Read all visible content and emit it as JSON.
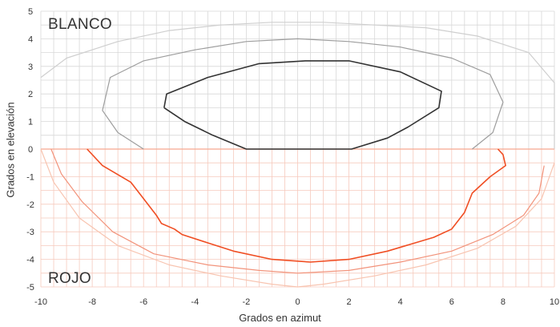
{
  "chart_data": {
    "type": "area",
    "xlabel": "Grados en azimut",
    "ylabel": "Grados en elevación",
    "xlim": [
      -10,
      10
    ],
    "ylim": [
      -5,
      5
    ],
    "grid": true,
    "x_ticks": [
      "-10",
      "-8",
      "-6",
      "-4",
      "-2",
      "0",
      "2",
      "4",
      "6",
      "8",
      "10"
    ],
    "y_ticks": [
      "5",
      "4",
      "3",
      "2",
      "1",
      "0",
      "-1",
      "-2",
      "-3",
      "-4",
      "-5"
    ],
    "regions": [
      {
        "label": "BLANCO",
        "color": "#9a9a9a",
        "contours": [
          {
            "level": "outer",
            "color": "#cfcfcf",
            "points": [
              [
                -10,
                2.6
              ],
              [
                -9,
                3.3
              ],
              [
                -7,
                3.9
              ],
              [
                -5,
                4.3
              ],
              [
                -3,
                4.5
              ],
              [
                -1,
                4.6
              ],
              [
                0,
                4.6
              ],
              [
                1,
                4.6
              ],
              [
                3,
                4.5
              ],
              [
                5,
                4.4
              ],
              [
                7,
                4.1
              ],
              [
                9,
                3.5
              ],
              [
                10,
                2.4
              ],
              [
                10,
                0
              ]
            ]
          },
          {
            "level": "middle",
            "color": "#9d9d9d",
            "points": [
              [
                -6.0,
                0
              ],
              [
                -7.0,
                0.6
              ],
              [
                -7.6,
                1.4
              ],
              [
                -7.3,
                2.6
              ],
              [
                -6,
                3.2
              ],
              [
                -4,
                3.6
              ],
              [
                -2,
                3.9
              ],
              [
                0,
                4.0
              ],
              [
                2,
                3.9
              ],
              [
                4,
                3.7
              ],
              [
                6,
                3.3
              ],
              [
                7.5,
                2.7
              ],
              [
                8.0,
                1.7
              ],
              [
                7.6,
                0.6
              ],
              [
                6.8,
                0
              ]
            ]
          },
          {
            "level": "inner",
            "color": "#333333",
            "points": [
              [
                -5.2,
                1.5
              ],
              [
                -5.1,
                2.0
              ],
              [
                -3.5,
                2.6
              ],
              [
                -1.5,
                3.1
              ],
              [
                0.3,
                3.2
              ],
              [
                2,
                3.2
              ],
              [
                4,
                2.8
              ],
              [
                5.6,
                2.1
              ],
              [
                5.5,
                1.5
              ],
              [
                4.3,
                0.8
              ],
              [
                3.5,
                0.4
              ],
              [
                2.1,
                0
              ],
              [
                -2.0,
                0
              ],
              [
                -3.3,
                0.5
              ],
              [
                -4.4,
                1.0
              ],
              [
                -5.2,
                1.5
              ]
            ]
          }
        ]
      },
      {
        "label": "ROJO",
        "color": "#f04e23",
        "contours": [
          {
            "level": "outer",
            "color": "#f8c4b0",
            "points": [
              [
                -10,
                0
              ],
              [
                -9.5,
                -1.2
              ],
              [
                -8.5,
                -2.5
              ],
              [
                -7,
                -3.5
              ],
              [
                -5,
                -4.2
              ],
              [
                -3,
                -4.6
              ],
              [
                -1,
                -4.9
              ],
              [
                0,
                -5.0
              ],
              [
                1,
                -4.9
              ],
              [
                3,
                -4.6
              ],
              [
                5,
                -4.2
              ],
              [
                7,
                -3.6
              ],
              [
                8.5,
                -2.8
              ],
              [
                9.5,
                -1.8
              ],
              [
                10,
                -0.5
              ]
            ]
          },
          {
            "level": "middle",
            "color": "#f2937b",
            "points": [
              [
                -9.6,
                0
              ],
              [
                -9.2,
                -0.9
              ],
              [
                -8.4,
                -1.9
              ],
              [
                -7.2,
                -3.0
              ],
              [
                -5.6,
                -3.8
              ],
              [
                -3.5,
                -4.2
              ],
              [
                -1.5,
                -4.4
              ],
              [
                0,
                -4.5
              ],
              [
                2,
                -4.4
              ],
              [
                4,
                -4.1
              ],
              [
                6,
                -3.7
              ],
              [
                7.6,
                -3.1
              ],
              [
                8.8,
                -2.4
              ],
              [
                9.4,
                -1.6
              ],
              [
                9.6,
                -0.6
              ]
            ]
          },
          {
            "level": "inner",
            "color": "#f04e23",
            "points": [
              [
                -8.2,
                0
              ],
              [
                -7.6,
                -0.6
              ],
              [
                -6.5,
                -1.2
              ],
              [
                -6,
                -1.8
              ],
              [
                -5.5,
                -2.4
              ],
              [
                -5.3,
                -2.7
              ],
              [
                -4.8,
                -2.9
              ],
              [
                -4.5,
                -3.1
              ],
              [
                -3.5,
                -3.4
              ],
              [
                -2.5,
                -3.7
              ],
              [
                -1,
                -4.0
              ],
              [
                0.5,
                -4.1
              ],
              [
                2,
                -4.0
              ],
              [
                3.5,
                -3.7
              ],
              [
                5.3,
                -3.2
              ],
              [
                6.0,
                -2.9
              ],
              [
                6.5,
                -2.3
              ],
              [
                6.8,
                -1.6
              ],
              [
                7.5,
                -1.0
              ],
              [
                8.1,
                -0.6
              ],
              [
                8.0,
                -0.2
              ],
              [
                7.8,
                0
              ]
            ]
          }
        ]
      }
    ]
  }
}
